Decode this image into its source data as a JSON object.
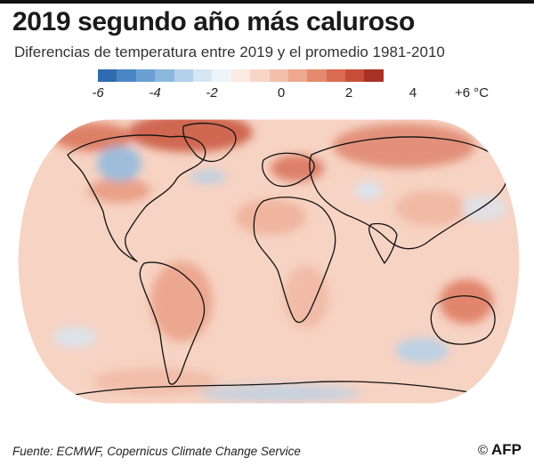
{
  "header": {
    "title": "2019 segundo año más caluroso",
    "subtitle": "Diferencias de temperatura entre 2019 y el promedio 1981-2010"
  },
  "legend": {
    "colors": [
      "#2f6bb0",
      "#4a86c5",
      "#6b9fd3",
      "#8db8de",
      "#b3d0ea",
      "#d6e6f3",
      "#eef4f8",
      "#fbeae3",
      "#f7d6c8",
      "#f3c0ac",
      "#eda88f",
      "#e48a6e",
      "#d96b50",
      "#c84d38",
      "#a83225"
    ],
    "ticks": [
      {
        "label": "-6",
        "value": -6
      },
      {
        "label": "-4",
        "value": -4
      },
      {
        "label": "-2",
        "value": -2
      },
      {
        "label": "0",
        "value": 0
      },
      {
        "label": "2",
        "value": 2
      },
      {
        "label": "4",
        "value": 4
      },
      {
        "label": "+6 °C",
        "value": 6
      }
    ]
  },
  "map": {
    "projection": "Robinson",
    "ocean_base_color": "#f7d3c3",
    "anomaly_cold_color": "#9ec4e4",
    "anomaly_hot_color": "#c8543d",
    "coastline_color": "#111111"
  },
  "footer": {
    "source": "Fuente: ECMWF, Copernicus Climate Change Service",
    "copyright": "©",
    "logo": "AFP"
  }
}
